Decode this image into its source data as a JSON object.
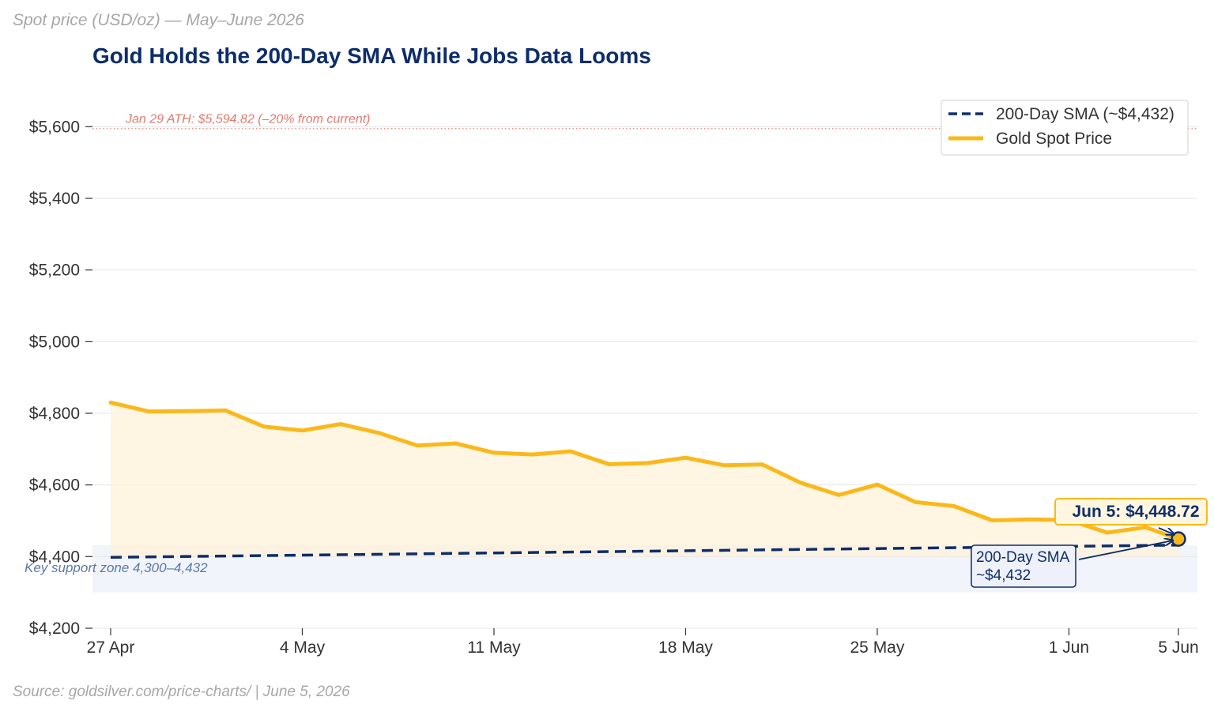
{
  "chart_data": {
    "type": "line",
    "subtitle": "Spot price (USD/oz) — May–June 2026",
    "title": "Gold Holds the 200-Day SMA While Jobs Data Looms",
    "source": "Source: goldsilver.com/price-charts/ | June 5, 2026",
    "ylim": [
      4200,
      5700
    ],
    "yticks": [
      {
        "value": 4200,
        "label": "$4,200"
      },
      {
        "value": 4400,
        "label": "$4,400"
      },
      {
        "value": 4600,
        "label": "$4,600"
      },
      {
        "value": 4800,
        "label": "$4,800"
      },
      {
        "value": 5000,
        "label": "$5,000"
      },
      {
        "value": 5200,
        "label": "$5,200"
      },
      {
        "value": 5400,
        "label": "$5,400"
      },
      {
        "value": 5600,
        "label": "$5,600"
      }
    ],
    "xticks": [
      {
        "day": 0,
        "label": "27 Apr"
      },
      {
        "day": 7,
        "label": "4 May"
      },
      {
        "day": 14,
        "label": "11 May"
      },
      {
        "day": 21,
        "label": "18 May"
      },
      {
        "day": 28,
        "label": "25 May"
      },
      {
        "day": 35,
        "label": "1 Jun"
      },
      {
        "day": 39,
        "label": "5 Jun"
      }
    ],
    "grid": true,
    "legend_position": "top-right",
    "legend": [
      {
        "label": "200-Day SMA (~$4,432)",
        "style": "dashed",
        "color": "#0d2d6b"
      },
      {
        "label": "Gold Spot Price",
        "style": "solid",
        "color": "#fbb81b"
      }
    ],
    "series": [
      {
        "name": "Gold Spot Price",
        "color": "#fbb81b",
        "points": [
          {
            "day": 0,
            "value": 4830
          },
          {
            "day": 1.4,
            "value": 4805
          },
          {
            "day": 2.8,
            "value": 4806
          },
          {
            "day": 4.2,
            "value": 4808
          },
          {
            "day": 5.6,
            "value": 4763
          },
          {
            "day": 7,
            "value": 4752
          },
          {
            "day": 8.4,
            "value": 4770
          },
          {
            "day": 9.8,
            "value": 4745
          },
          {
            "day": 11.2,
            "value": 4710
          },
          {
            "day": 12.6,
            "value": 4716
          },
          {
            "day": 14,
            "value": 4690
          },
          {
            "day": 15.4,
            "value": 4685
          },
          {
            "day": 16.8,
            "value": 4694
          },
          {
            "day": 18.2,
            "value": 4658
          },
          {
            "day": 19.6,
            "value": 4661
          },
          {
            "day": 21,
            "value": 4676
          },
          {
            "day": 22.4,
            "value": 4655
          },
          {
            "day": 23.8,
            "value": 4657
          },
          {
            "day": 25.2,
            "value": 4606
          },
          {
            "day": 26.6,
            "value": 4572
          },
          {
            "day": 28,
            "value": 4601
          },
          {
            "day": 29.4,
            "value": 4552
          },
          {
            "day": 30.8,
            "value": 4541
          },
          {
            "day": 32.2,
            "value": 4501
          },
          {
            "day": 33.6,
            "value": 4504
          },
          {
            "day": 35,
            "value": 4502
          },
          {
            "day": 36.4,
            "value": 4467
          },
          {
            "day": 37.8,
            "value": 4482
          },
          {
            "day": 39,
            "value": 4449
          }
        ]
      },
      {
        "name": "200-Day SMA (~$4,432)",
        "color": "#0d2d6b",
        "style": "dashed",
        "points": [
          {
            "day": 0,
            "value": 4398
          },
          {
            "day": 39,
            "value": 4432
          }
        ]
      }
    ],
    "reference_lines": [
      {
        "value": 5594.82,
        "color": "#e07b6e",
        "label": "Jan 29 ATH: $5,594.82  (–20% from current)"
      }
    ],
    "bands": [
      {
        "from": 4300,
        "to": 4432,
        "color": "#e7ecf6",
        "label": "Key support zone  4,300–4,432"
      }
    ],
    "annotations": {
      "last_price_label": "Jun 5: $4,448.72",
      "last_price_point": {
        "day": 39,
        "value": 4449
      },
      "sma_label_line1": "200-Day SMA",
      "sma_label_line2": "~$4,432"
    }
  }
}
